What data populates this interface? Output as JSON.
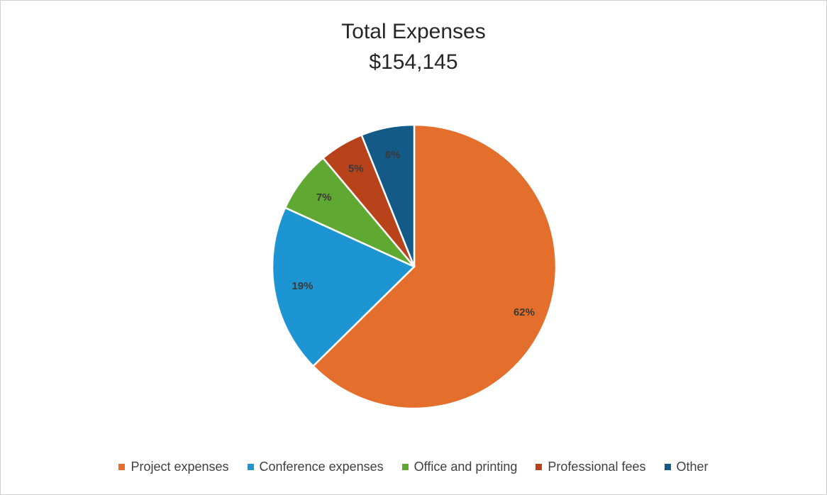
{
  "chart_data": {
    "type": "pie",
    "title": "Total Expenses",
    "subtitle": "$154,145",
    "categories": [
      "Project expenses",
      "Conference expenses",
      "Office and printing",
      "Professional fees",
      "Other"
    ],
    "values": [
      62,
      19,
      7,
      5,
      6
    ],
    "labels": [
      "62%",
      "19%",
      "7%",
      "5%",
      "6%"
    ],
    "colors": [
      "#E46F2C",
      "#1E95D3",
      "#5FA832",
      "#B8431A",
      "#135A86"
    ],
    "legend": "bottom"
  }
}
